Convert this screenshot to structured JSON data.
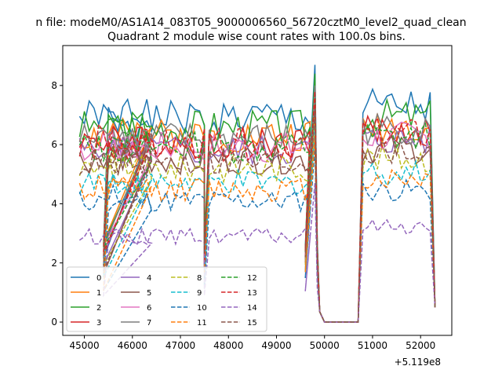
{
  "figure": {
    "suptitle": "n file: modeM0/AS1A14_083T05_9000006560_56720cztM0_level2_quad_clean",
    "offset_text": "+5.119e8"
  },
  "chart_data": {
    "type": "line",
    "title": "Quadrant 2 module wise count rates with 100.0s bins.",
    "xlabel": "",
    "ylabel": "",
    "x_offset": 511900000,
    "xlim": [
      44550,
      52650
    ],
    "ylim": [
      -0.45,
      9.35
    ],
    "x_ticks": [
      45000,
      46000,
      47000,
      48000,
      49000,
      50000,
      51000,
      52000
    ],
    "x_tick_labels": [
      "45000",
      "46000",
      "47000",
      "48000",
      "49000",
      "50000",
      "51000",
      "52000"
    ],
    "y_ticks": [
      0,
      2,
      4,
      6,
      8
    ],
    "y_tick_labels": [
      "0",
      "2",
      "4",
      "6",
      "8"
    ],
    "grid": false,
    "legend_position": "lower-left",
    "legend_columns": 4,
    "segments": [
      {
        "start": 44900,
        "n": 16
      },
      {
        "start": 45500,
        "n": 21
      },
      {
        "start": 47600,
        "n": 22
      },
      {
        "start": 49900,
        "n": 9
      },
      {
        "start": 50800,
        "n": 16
      }
    ],
    "series": [
      {
        "name": "0",
        "color": "#1f77b4",
        "style": "solid",
        "level": 6.9,
        "seed": 1
      },
      {
        "name": "1",
        "color": "#ff7f0e",
        "style": "solid",
        "level": 6.3,
        "seed": 2
      },
      {
        "name": "2",
        "color": "#2ca02c",
        "style": "solid",
        "level": 6.6,
        "seed": 3
      },
      {
        "name": "3",
        "color": "#d62728",
        "style": "solid",
        "level": 6.1,
        "seed": 4
      },
      {
        "name": "4",
        "color": "#9467bd",
        "style": "solid",
        "level": 5.8,
        "seed": 5
      },
      {
        "name": "5",
        "color": "#8c564b",
        "style": "solid",
        "level": 5.5,
        "seed": 6
      },
      {
        "name": "6",
        "color": "#e377c2",
        "style": "solid",
        "level": 5.9,
        "seed": 7
      },
      {
        "name": "7",
        "color": "#7f7f7f",
        "style": "solid",
        "level": 6.2,
        "seed": 8
      },
      {
        "name": "8",
        "color": "#bcbd22",
        "style": "dashed",
        "level": 5.2,
        "seed": 9
      },
      {
        "name": "9",
        "color": "#17becf",
        "style": "dashed",
        "level": 4.7,
        "seed": 10
      },
      {
        "name": "10",
        "color": "#1f77b4",
        "style": "dashed",
        "level": 4.1,
        "seed": 11
      },
      {
        "name": "11",
        "color": "#ff7f0e",
        "style": "dashed",
        "level": 4.5,
        "seed": 12
      },
      {
        "name": "12",
        "color": "#2ca02c",
        "style": "dashed",
        "level": 5.9,
        "seed": 13
      },
      {
        "name": "13",
        "color": "#d62728",
        "style": "dashed",
        "level": 6.0,
        "seed": 14
      },
      {
        "name": "14",
        "color": "#9467bd",
        "style": "dashed",
        "level": 2.9,
        "seed": 15
      },
      {
        "name": "15",
        "color": "#8c564b",
        "style": "dashed",
        "level": 5.4,
        "seed": 16
      }
    ]
  }
}
